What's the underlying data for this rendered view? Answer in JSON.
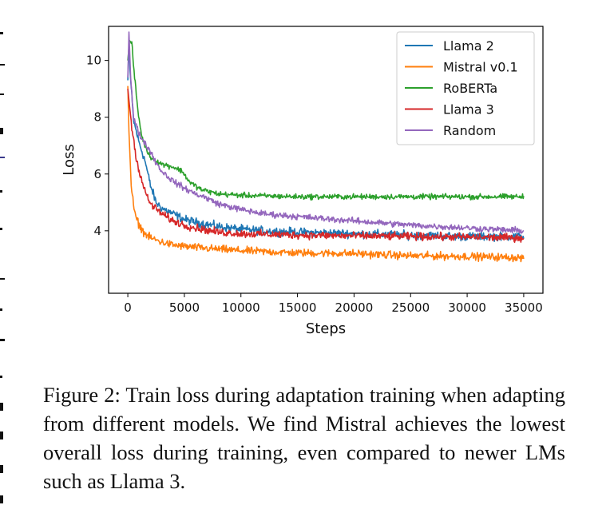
{
  "chart_data": {
    "type": "line",
    "title": "",
    "xlabel": "Steps",
    "ylabel": "Loss",
    "xlim": [
      -1700,
      36700
    ],
    "ylim": [
      1.8,
      11.2
    ],
    "xticks": [
      0,
      5000,
      10000,
      15000,
      20000,
      25000,
      30000,
      35000
    ],
    "xtick_labels": [
      "0",
      "5000",
      "10000",
      "15000",
      "20000",
      "25000",
      "30000",
      "35000"
    ],
    "yticks": [
      4,
      6,
      8,
      10
    ],
    "ytick_labels": [
      "4",
      "6",
      "8",
      "10"
    ],
    "grid": false,
    "legend_position": "upper right",
    "series": [
      {
        "name": "Llama 2",
        "color": "#1f77b4",
        "points": [
          [
            0,
            9.3
          ],
          [
            100,
            10.6
          ],
          [
            200,
            9.6
          ],
          [
            500,
            7.9
          ],
          [
            1000,
            7.1
          ],
          [
            1500,
            6.5
          ],
          [
            2000,
            5.6
          ],
          [
            2500,
            5.0
          ],
          [
            3000,
            4.8
          ],
          [
            4000,
            4.6
          ],
          [
            5000,
            4.4
          ],
          [
            6000,
            4.3
          ],
          [
            8000,
            4.15
          ],
          [
            10000,
            4.05
          ],
          [
            12000,
            4.0
          ],
          [
            15000,
            3.95
          ],
          [
            18000,
            3.92
          ],
          [
            20000,
            3.9
          ],
          [
            25000,
            3.85
          ],
          [
            30000,
            3.8
          ],
          [
            35000,
            3.8
          ]
        ],
        "noise": 0.11
      },
      {
        "name": "Mistral v0.1",
        "color": "#ff7f0e",
        "points": [
          [
            0,
            9.1
          ],
          [
            100,
            7.5
          ],
          [
            300,
            5.6
          ],
          [
            600,
            4.6
          ],
          [
            1000,
            4.2
          ],
          [
            1500,
            3.9
          ],
          [
            2000,
            3.75
          ],
          [
            3000,
            3.6
          ],
          [
            4000,
            3.5
          ],
          [
            5000,
            3.45
          ],
          [
            7000,
            3.38
          ],
          [
            10000,
            3.3
          ],
          [
            15000,
            3.22
          ],
          [
            20000,
            3.2
          ],
          [
            25000,
            3.12
          ],
          [
            30000,
            3.1
          ],
          [
            35000,
            3.05
          ]
        ],
        "noise": 0.1
      },
      {
        "name": "RoBERTa",
        "color": "#2ca02c",
        "points": [
          [
            0,
            10.0
          ],
          [
            150,
            10.7
          ],
          [
            350,
            10.6
          ],
          [
            600,
            9.4
          ],
          [
            900,
            8.2
          ],
          [
            1200,
            7.4
          ],
          [
            1600,
            6.9
          ],
          [
            2000,
            6.6
          ],
          [
            3000,
            6.35
          ],
          [
            4000,
            6.25
          ],
          [
            4800,
            6.1
          ],
          [
            5500,
            5.7
          ],
          [
            6500,
            5.45
          ],
          [
            8000,
            5.3
          ],
          [
            10000,
            5.25
          ],
          [
            15000,
            5.2
          ],
          [
            20000,
            5.2
          ],
          [
            25000,
            5.2
          ],
          [
            30000,
            5.2
          ],
          [
            35000,
            5.2
          ]
        ],
        "noise": 0.07
      },
      {
        "name": "Llama 3",
        "color": "#d62728",
        "points": [
          [
            0,
            9.0
          ],
          [
            150,
            8.4
          ],
          [
            400,
            7.5
          ],
          [
            700,
            6.7
          ],
          [
            1000,
            6.1
          ],
          [
            1500,
            5.4
          ],
          [
            2000,
            4.95
          ],
          [
            3000,
            4.6
          ],
          [
            4000,
            4.35
          ],
          [
            5000,
            4.2
          ],
          [
            6000,
            4.1
          ],
          [
            8000,
            3.95
          ],
          [
            10000,
            3.9
          ],
          [
            15000,
            3.85
          ],
          [
            20000,
            3.82
          ],
          [
            25000,
            3.8
          ],
          [
            30000,
            3.78
          ],
          [
            35000,
            3.75
          ]
        ],
        "noise": 0.1
      },
      {
        "name": "Random",
        "color": "#9467bd",
        "points": [
          [
            0,
            9.4
          ],
          [
            100,
            11.0
          ],
          [
            250,
            9.4
          ],
          [
            500,
            8.0
          ],
          [
            1000,
            7.4
          ],
          [
            1500,
            7.1
          ],
          [
            2000,
            6.8
          ],
          [
            2500,
            6.4
          ],
          [
            3000,
            6.1
          ],
          [
            4000,
            5.75
          ],
          [
            5000,
            5.5
          ],
          [
            6000,
            5.3
          ],
          [
            7000,
            5.15
          ],
          [
            8000,
            4.95
          ],
          [
            10000,
            4.75
          ],
          [
            12000,
            4.6
          ],
          [
            15000,
            4.5
          ],
          [
            20000,
            4.35
          ],
          [
            25000,
            4.2
          ],
          [
            30000,
            4.1
          ],
          [
            35000,
            4.0
          ]
        ],
        "noise": 0.08
      }
    ]
  },
  "caption": "Figure 2: Train loss during adaptation training when adapting from different models.  We find Mistral achieves the lowest overall loss during training, even compared to newer LMs such as Llama 3."
}
